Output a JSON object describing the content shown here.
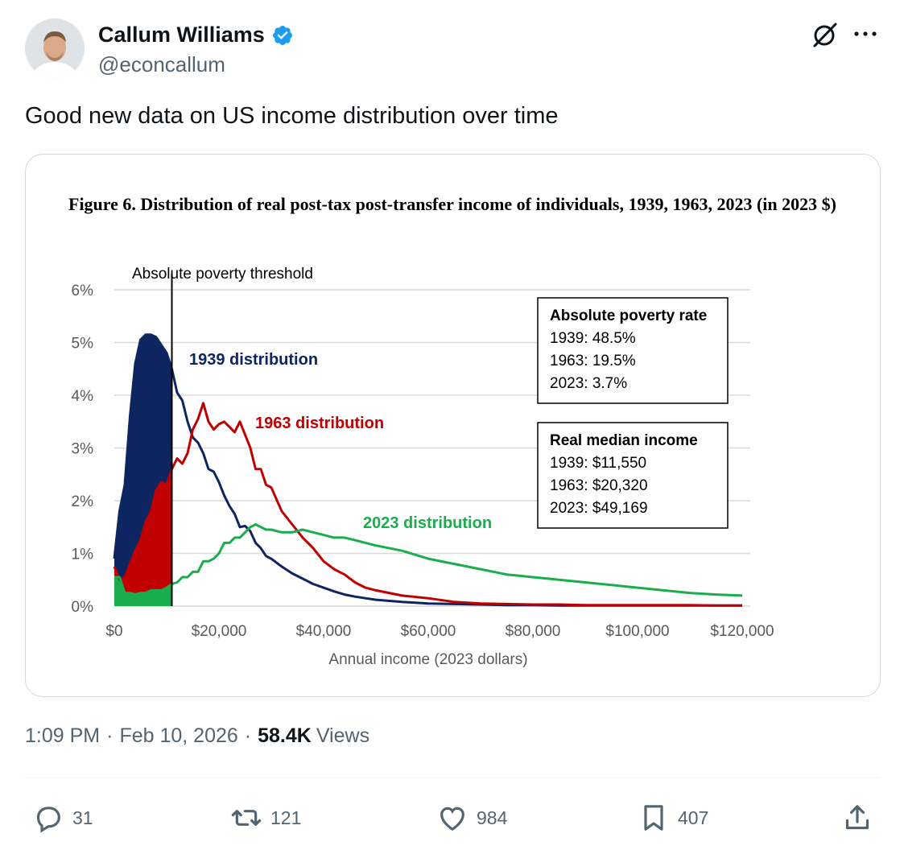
{
  "author": {
    "display_name": "Callum Williams",
    "handle": "@econcallum",
    "verified": true,
    "verified_color": "#1d9bf0"
  },
  "tweet": {
    "text": "Good new data on US income distribution over time",
    "time": "1:09 PM",
    "date": "Feb 10, 2026",
    "views_count": "58.4K",
    "views_label": "Views"
  },
  "actions": {
    "replies": "31",
    "reposts": "121",
    "likes": "984",
    "bookmarks": "407"
  },
  "icons": [
    "avatar",
    "verified-badge-icon",
    "grok-icon",
    "more-icon",
    "reply-icon",
    "repost-icon",
    "like-icon",
    "bookmark-icon",
    "share-icon"
  ],
  "chart_data": {
    "type": "line",
    "title": "Figure 6. Distribution of real post-tax post-transfer income of individuals, 1939, 1963, 2023 (in 2023 $)",
    "xlabel": "Annual income (2023 dollars)",
    "ylabel": "",
    "xlim": [
      0,
      120000
    ],
    "ylim": [
      0,
      6
    ],
    "x_ticks": [
      "$0",
      "$20,000",
      "$40,000",
      "$60,000",
      "$80,000",
      "$100,000",
      "$120,000"
    ],
    "x_tick_values": [
      0,
      20000,
      40000,
      60000,
      80000,
      100000,
      120000
    ],
    "y_ticks": [
      "0%",
      "1%",
      "2%",
      "3%",
      "4%",
      "5%",
      "6%"
    ],
    "y_tick_values": [
      0,
      1,
      2,
      3,
      4,
      5,
      6
    ],
    "grid": "horizontal",
    "threshold": {
      "x": 11000,
      "label": "Absolute poverty threshold"
    },
    "x": [
      0,
      1000,
      2000,
      3000,
      4000,
      5000,
      6000,
      7000,
      8000,
      9000,
      10000,
      11000,
      12000,
      13000,
      14000,
      15000,
      16000,
      17000,
      18000,
      19000,
      20000,
      21000,
      22000,
      23000,
      24000,
      25000,
      26000,
      27000,
      28000,
      29000,
      30000,
      32000,
      34000,
      36000,
      38000,
      40000,
      42000,
      44000,
      46000,
      48000,
      50000,
      55000,
      60000,
      65000,
      70000,
      75000,
      80000,
      85000,
      90000,
      95000,
      100000,
      105000,
      110000,
      115000,
      120000
    ],
    "series": [
      {
        "name": "1939 distribution",
        "color": "#0d2560",
        "values": [
          0.9,
          1.8,
          2.3,
          3.6,
          4.6,
          5.05,
          5.15,
          5.15,
          5.1,
          4.95,
          4.8,
          4.5,
          4.05,
          3.9,
          3.5,
          3.2,
          3.1,
          2.9,
          2.6,
          2.55,
          2.35,
          2.1,
          1.9,
          1.75,
          1.5,
          1.52,
          1.42,
          1.2,
          1.1,
          0.95,
          0.9,
          0.75,
          0.62,
          0.52,
          0.42,
          0.35,
          0.28,
          0.22,
          0.18,
          0.15,
          0.12,
          0.08,
          0.05,
          0.04,
          0.03,
          0.02,
          0.02,
          0.01,
          0.01,
          0.01,
          0.01,
          0.01,
          0.01,
          0.01,
          0.01
        ]
      },
      {
        "name": "1963 distribution",
        "color": "#c00000",
        "values": [
          0.75,
          0.5,
          0.55,
          0.8,
          1.05,
          1.25,
          1.6,
          1.8,
          2.2,
          2.35,
          2.3,
          2.6,
          2.8,
          2.7,
          2.9,
          3.35,
          3.55,
          3.85,
          3.5,
          3.35,
          3.45,
          3.5,
          3.4,
          3.3,
          3.5,
          3.25,
          3.0,
          2.6,
          2.6,
          2.3,
          2.25,
          1.8,
          1.55,
          1.3,
          1.1,
          0.85,
          0.7,
          0.6,
          0.45,
          0.35,
          0.3,
          0.2,
          0.15,
          0.08,
          0.05,
          0.04,
          0.03,
          0.03,
          0.02,
          0.02,
          0.02,
          0.02,
          0.02,
          0.01,
          0.01
        ]
      },
      {
        "name": "2023 distribution",
        "color": "#1aad4e",
        "values": [
          0.55,
          0.55,
          0.25,
          0.25,
          0.22,
          0.25,
          0.25,
          0.3,
          0.3,
          0.3,
          0.35,
          0.42,
          0.45,
          0.55,
          0.55,
          0.65,
          0.65,
          0.85,
          0.85,
          0.9,
          1.0,
          1.2,
          1.2,
          1.3,
          1.3,
          1.4,
          1.5,
          1.55,
          1.5,
          1.45,
          1.45,
          1.4,
          1.4,
          1.45,
          1.4,
          1.35,
          1.3,
          1.3,
          1.25,
          1.2,
          1.15,
          1.05,
          0.9,
          0.8,
          0.7,
          0.6,
          0.55,
          0.5,
          0.45,
          0.4,
          0.35,
          0.3,
          0.25,
          0.22,
          0.2
        ]
      }
    ],
    "series_labels": [
      "1939 distribution",
      "1963 distribution",
      "2023 distribution"
    ],
    "info_boxes": [
      {
        "title": "Absolute poverty rate",
        "lines": [
          "1939: 48.5%",
          "1963: 19.5%",
          "2023: 3.7%"
        ]
      },
      {
        "title": "Real median income",
        "lines": [
          "1939: $11,550",
          "1963: $20,320",
          "2023: $49,169"
        ]
      }
    ]
  }
}
